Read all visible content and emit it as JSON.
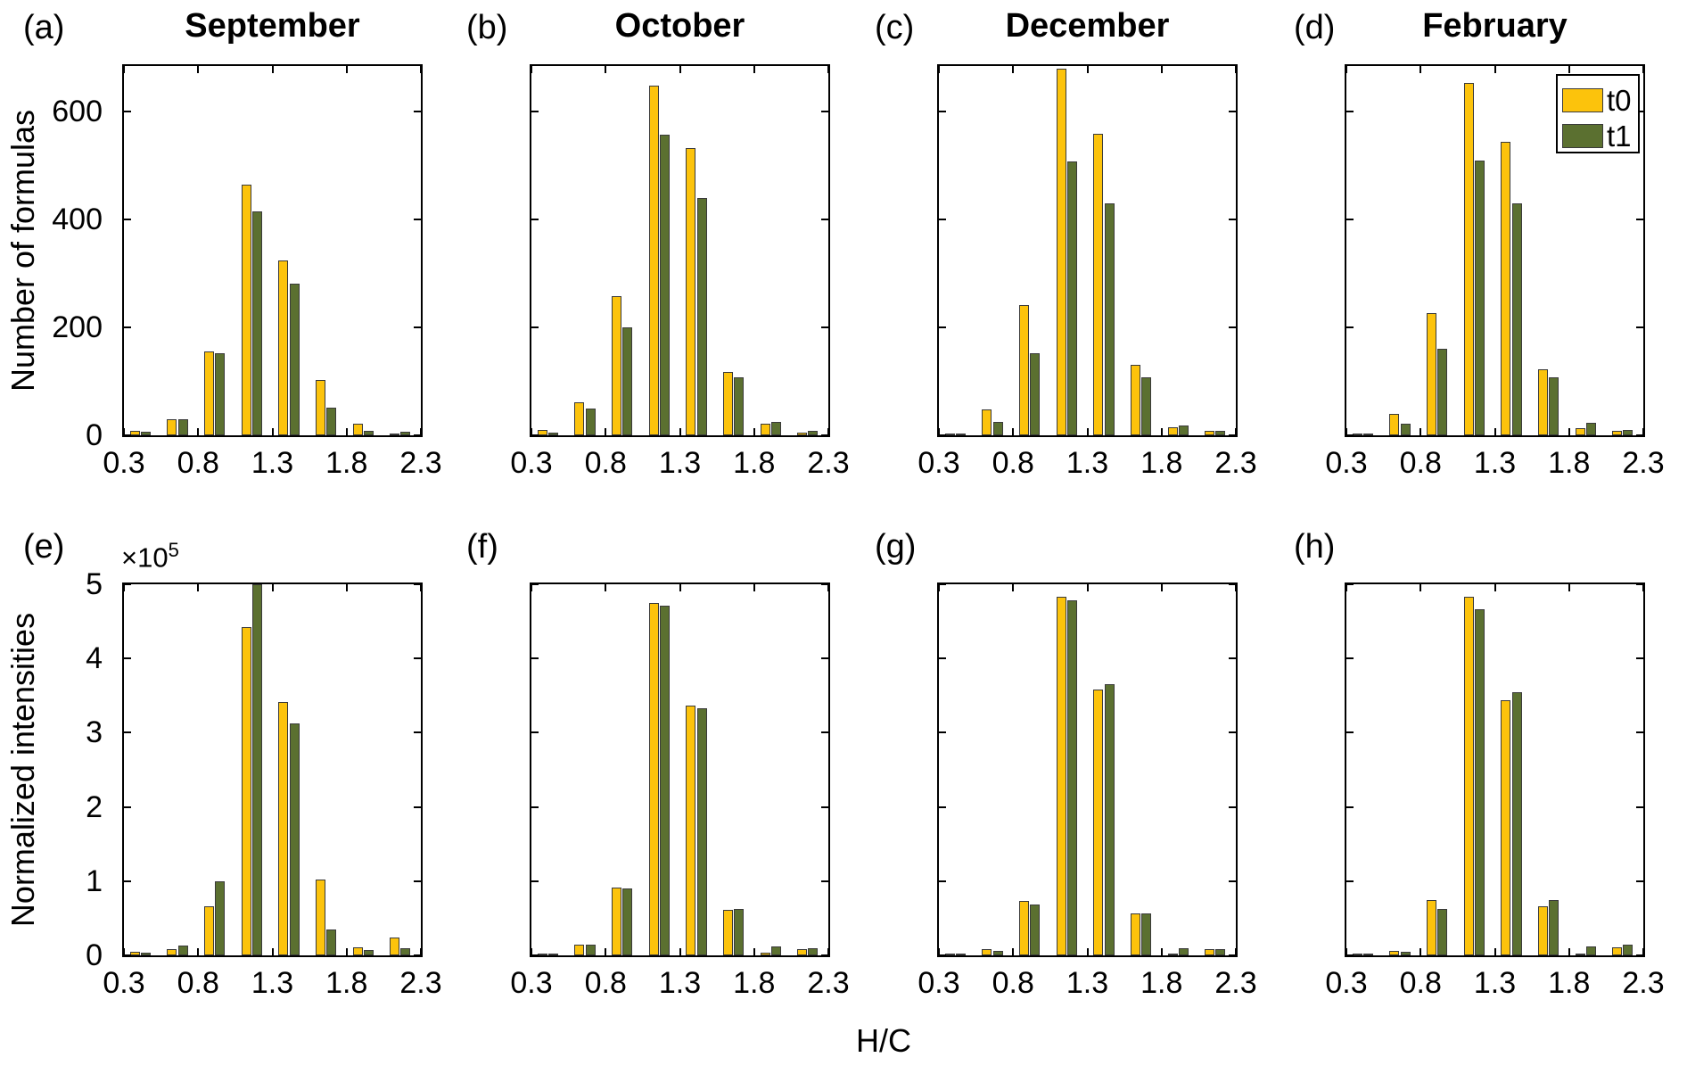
{
  "figure": {
    "xlabel": "H/C",
    "row1_ylabel": "Number of formulas",
    "row2_ylabel": "Normalized intensities",
    "scale_base": "×10",
    "scale_exp": "5",
    "legend": [
      "t0",
      "t1"
    ],
    "colors": {
      "t0": "#FCC30C",
      "t1": "#5B7030",
      "edge": "#3A3A3A",
      "axis": "#000000"
    }
  },
  "chart_data": {
    "type": "bar",
    "xlim": [
      0.3,
      2.3
    ],
    "bin_width": 0.25,
    "bin_centers": [
      0.425,
      0.675,
      0.925,
      1.175,
      1.425,
      1.675,
      1.925,
      2.175
    ],
    "x_ticks": [
      "0.3",
      "0.8",
      "1.3",
      "1.8",
      "2.3"
    ],
    "legend_entries": [
      "t0",
      "t1"
    ],
    "legend_position": "top-right of panel d",
    "grid": false,
    "rows": [
      {
        "ylabel": "Number of formulas",
        "y_ticks": [
          0,
          200,
          400,
          600
        ],
        "axis_max": 685,
        "scale": null
      },
      {
        "ylabel": "Normalized intensities",
        "y_ticks": [
          0,
          1,
          2,
          3,
          4,
          5
        ],
        "axis_max": 5,
        "scale": "×10^5"
      }
    ],
    "panels": [
      {
        "id": "a",
        "letter": "(a)",
        "title": "September",
        "row": 0,
        "col": 0,
        "t0": [
          8,
          30,
          156,
          465,
          325,
          103,
          21,
          4
        ],
        "t1": [
          6,
          30,
          153,
          415,
          282,
          52,
          9,
          6
        ]
      },
      {
        "id": "b",
        "letter": "(b)",
        "title": "October",
        "row": 0,
        "col": 1,
        "t0": [
          10,
          62,
          258,
          648,
          533,
          118,
          22,
          5
        ],
        "t1": [
          5,
          50,
          200,
          558,
          440,
          108,
          25,
          8
        ]
      },
      {
        "id": "c",
        "letter": "(c)",
        "title": "December",
        "row": 0,
        "col": 2,
        "t0": [
          4,
          48,
          242,
          680,
          560,
          130,
          15,
          9
        ],
        "t1": [
          2,
          25,
          152,
          508,
          430,
          107,
          18,
          8
        ]
      },
      {
        "id": "d",
        "letter": "(d)",
        "title": "February",
        "row": 0,
        "col": 3,
        "legend": true,
        "t0": [
          3,
          39,
          227,
          654,
          544,
          123,
          13,
          9
        ],
        "t1": [
          2,
          22,
          161,
          510,
          431,
          107,
          24,
          10
        ]
      },
      {
        "id": "e",
        "letter": "(e)",
        "title": null,
        "row": 1,
        "col": 0,
        "t0": [
          0.05,
          0.09,
          0.66,
          4.42,
          3.42,
          1.02,
          0.11,
          0.24
        ],
        "t1": [
          0.04,
          0.13,
          1.0,
          5.0,
          3.12,
          0.35,
          0.07,
          0.1
        ]
      },
      {
        "id": "f",
        "letter": "(f)",
        "title": null,
        "row": 1,
        "col": 1,
        "t0": [
          0.02,
          0.15,
          0.92,
          4.75,
          3.37,
          0.61,
          0.04,
          0.08
        ],
        "t1": [
          0.01,
          0.15,
          0.9,
          4.71,
          3.33,
          0.62,
          0.12,
          0.1
        ]
      },
      {
        "id": "g",
        "letter": "(g)",
        "title": null,
        "row": 1,
        "col": 2,
        "t0": [
          0.01,
          0.08,
          0.73,
          4.83,
          3.58,
          0.57,
          0.02,
          0.08
        ],
        "t1": [
          0.01,
          0.06,
          0.68,
          4.78,
          3.65,
          0.57,
          0.1,
          0.08
        ]
      },
      {
        "id": "h",
        "letter": "(h)",
        "title": null,
        "row": 1,
        "col": 3,
        "t0": [
          0.01,
          0.06,
          0.74,
          4.83,
          3.44,
          0.66,
          0.03,
          0.11
        ],
        "t1": [
          0.01,
          0.05,
          0.63,
          4.66,
          3.55,
          0.74,
          0.12,
          0.14
        ]
      }
    ]
  }
}
